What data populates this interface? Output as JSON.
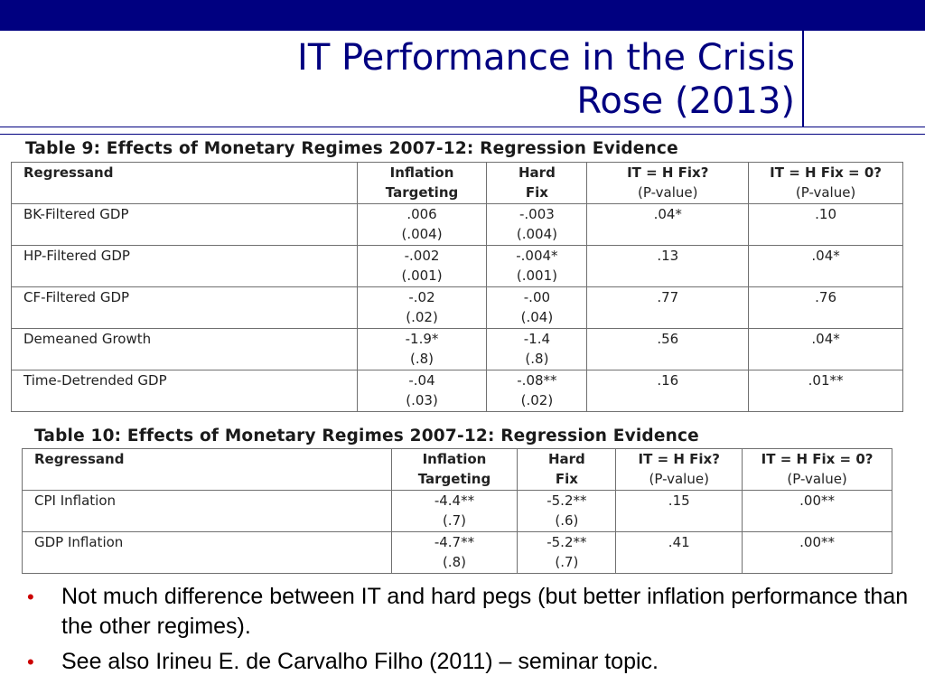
{
  "title": {
    "line1": "IT Performance in the Crisis",
    "line2": "Rose (2013)"
  },
  "table9": {
    "caption": "Table 9: Effects of Monetary Regimes 2007-12: Regression Evidence",
    "headers": [
      {
        "line1": "Regressand",
        "line2": ""
      },
      {
        "line1": "Inflation",
        "line2": "Targeting"
      },
      {
        "line1": "Hard",
        "line2": "Fix"
      },
      {
        "line1": "IT = H Fix?",
        "line2": "(P-value)"
      },
      {
        "line1": "IT = H Fix = 0?",
        "line2": "(P-value)"
      }
    ],
    "rows": [
      {
        "regressand": "BK-Filtered GDP",
        "it_coef": ".006",
        "it_se": "(.004)",
        "hf_coef": "-.003",
        "hf_se": "(.004)",
        "p1": ".04*",
        "p2": ".10"
      },
      {
        "regressand": "HP-Filtered GDP",
        "it_coef": "-.002",
        "it_se": "(.001)",
        "hf_coef": "-.004*",
        "hf_se": "(.001)",
        "p1": ".13",
        "p2": ".04*"
      },
      {
        "regressand": "CF-Filtered GDP",
        "it_coef": "-.02",
        "it_se": "(.02)",
        "hf_coef": "-.00",
        "hf_se": "(.04)",
        "p1": ".77",
        "p2": ".76"
      },
      {
        "regressand": "Demeaned Growth",
        "it_coef": "-1.9*",
        "it_se": "(.8)",
        "hf_coef": "-1.4",
        "hf_se": "(.8)",
        "p1": ".56",
        "p2": ".04*"
      },
      {
        "regressand": "Time-Detrended GDP",
        "it_coef": "-.04",
        "it_se": "(.03)",
        "hf_coef": "-.08**",
        "hf_se": "(.02)",
        "p1": ".16",
        "p2": ".01**"
      }
    ]
  },
  "table10": {
    "caption": "Table 10: Effects of Monetary Regimes 2007-12: Regression Evidence",
    "headers": [
      {
        "line1": "Regressand",
        "line2": ""
      },
      {
        "line1": "Inflation",
        "line2": "Targeting"
      },
      {
        "line1": "Hard",
        "line2": "Fix"
      },
      {
        "line1": "IT = H Fix?",
        "line2": "(P-value)"
      },
      {
        "line1": "IT = H Fix = 0?",
        "line2": "(P-value)"
      }
    ],
    "rows": [
      {
        "regressand": "CPI Inflation",
        "it_coef": "-4.4**",
        "it_se": "(.7)",
        "hf_coef": "-5.2**",
        "hf_se": "(.6)",
        "p1": ".15",
        "p2": ".00**"
      },
      {
        "regressand": "GDP Inflation",
        "it_coef": "-4.7**",
        "it_se": "(.8)",
        "hf_coef": "-5.2**",
        "hf_se": "(.7)",
        "p1": ".41",
        "p2": ".00**"
      }
    ]
  },
  "bullets": [
    "Not much difference between IT and hard pegs (but better inflation performance than the other regimes).",
    "See also Irineu E. de Carvalho Filho (2011) – seminar topic."
  ],
  "bullet_symbol": "•",
  "colors": {
    "header_bar": "#000080",
    "title": "#000080",
    "bullet": "#cc0000"
  }
}
